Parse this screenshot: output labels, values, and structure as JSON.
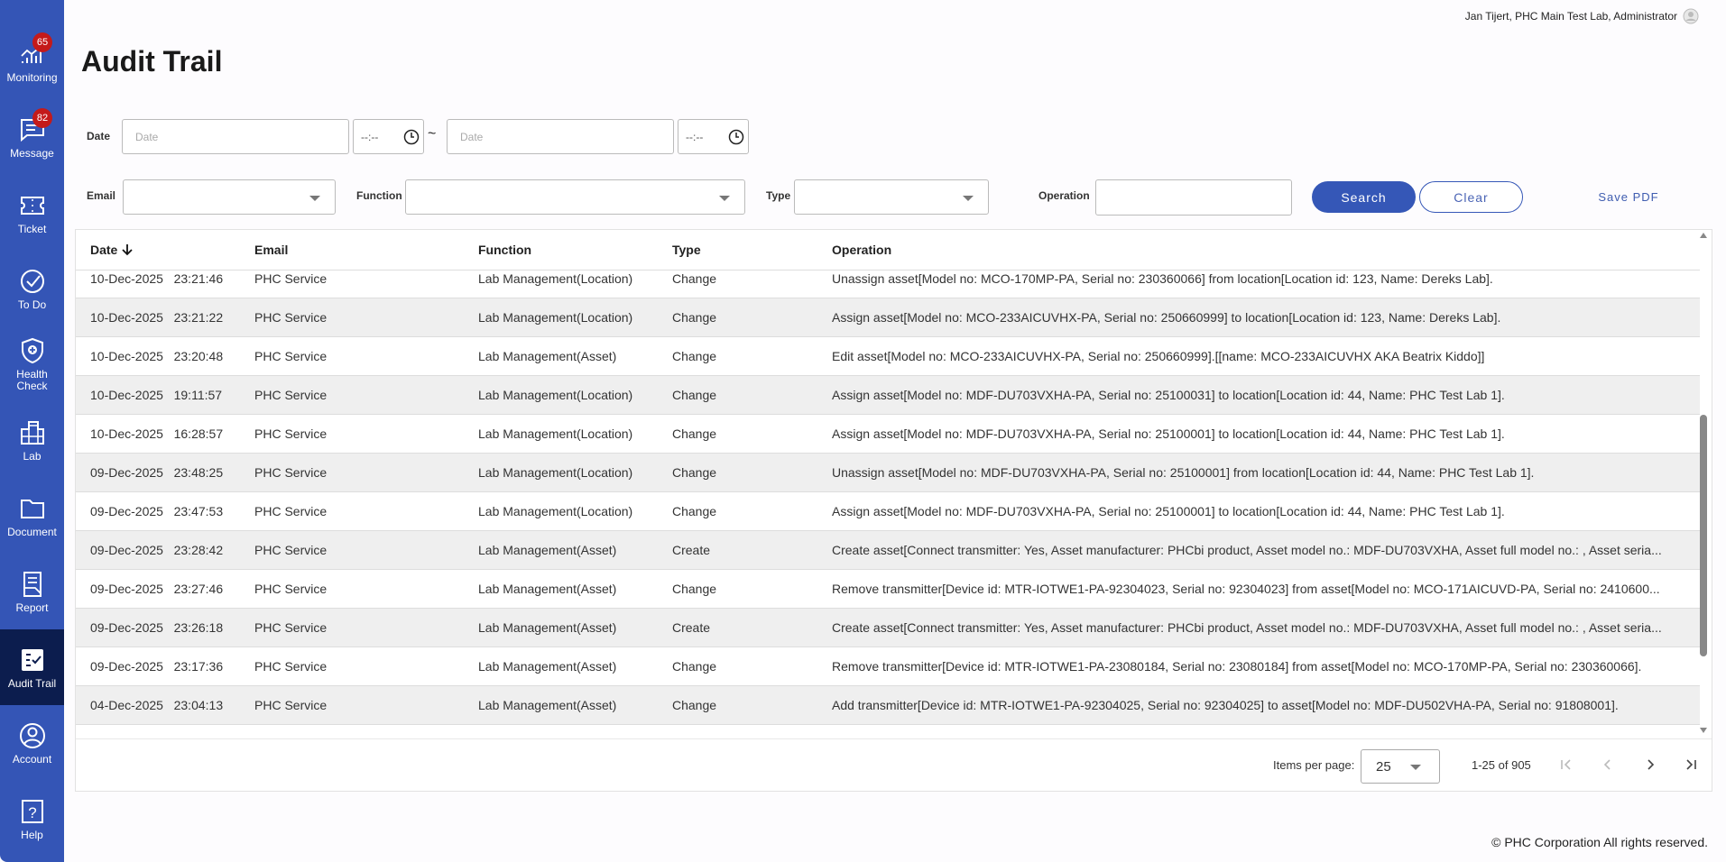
{
  "sidebar": {
    "items": [
      {
        "label": "Monitoring",
        "icon": "monitoring-chart-icon",
        "badge": "65"
      },
      {
        "label": "Message",
        "icon": "message-icon",
        "badge": "82"
      },
      {
        "label": "Ticket",
        "icon": "ticket-icon"
      },
      {
        "label": "To Do",
        "icon": "check-circle-icon"
      },
      {
        "label": "Health Check",
        "icon": "shield-plus-icon"
      },
      {
        "label": "Lab",
        "icon": "building-icon"
      },
      {
        "label": "Document",
        "icon": "folder-icon"
      },
      {
        "label": "Report",
        "icon": "report-icon"
      },
      {
        "label": "Audit Trail",
        "icon": "audit-list-icon",
        "active": true
      },
      {
        "label": "Account",
        "icon": "account-icon"
      },
      {
        "label": "Help",
        "icon": "help-icon"
      }
    ]
  },
  "user": {
    "label": "Jan Tijert, PHC Main Test Lab, Administrator"
  },
  "page": {
    "title": "Audit Trail"
  },
  "filters": {
    "date_label": "Date",
    "date_placeholder": "Date",
    "time_placeholder": "--:--",
    "range_sep": "~",
    "email_label": "Email",
    "function_label": "Function",
    "type_label": "Type",
    "operation_label": "Operation",
    "search": "Search",
    "clear": "Clear",
    "save_pdf": "Save PDF"
  },
  "colors": {
    "sidebar": "#3455b6",
    "active": "#0c1d4e",
    "accent": "#3557b7"
  },
  "table": {
    "columns": [
      "Date",
      "Email",
      "Function",
      "Type",
      "Operation"
    ],
    "sort": "Date descending",
    "rows": [
      [
        "10-Dec-2025   23:21:46",
        "PHC Service",
        "Lab Management(Location)",
        "Change",
        "Unassign asset[Model no: MCO-170MP-PA, Serial no: 230360066] from location[Location id: 123, Name: Dereks Lab]."
      ],
      [
        "10-Dec-2025   23:21:22",
        "PHC Service",
        "Lab Management(Location)",
        "Change",
        "Assign asset[Model no: MCO-233AICUVHX-PA, Serial no: 250660999] to location[Location id: 123, Name: Dereks Lab]."
      ],
      [
        "10-Dec-2025   23:20:48",
        "PHC Service",
        "Lab Management(Asset)",
        "Change",
        "Edit asset[Model no: MCO-233AICUVHX-PA, Serial no: 250660999].[[name: MCO-233AICUVHX AKA Beatrix Kiddo]]"
      ],
      [
        "10-Dec-2025   19:11:57",
        "PHC Service",
        "Lab Management(Location)",
        "Change",
        "Assign asset[Model no: MDF-DU703VXHA-PA, Serial no: 25100031] to location[Location id: 44, Name: PHC Test Lab 1]."
      ],
      [
        "10-Dec-2025   16:28:57",
        "PHC Service",
        "Lab Management(Location)",
        "Change",
        "Assign asset[Model no: MDF-DU703VXHA-PA, Serial no: 25100001] to location[Location id: 44, Name: PHC Test Lab 1]."
      ],
      [
        "09-Dec-2025   23:48:25",
        "PHC Service",
        "Lab Management(Location)",
        "Change",
        "Unassign asset[Model no: MDF-DU703VXHA-PA, Serial no: 25100001] from location[Location id: 44, Name: PHC Test Lab 1]."
      ],
      [
        "09-Dec-2025   23:47:53",
        "PHC Service",
        "Lab Management(Location)",
        "Change",
        "Assign asset[Model no: MDF-DU703VXHA-PA, Serial no: 25100001] to location[Location id: 44, Name: PHC Test Lab 1]."
      ],
      [
        "09-Dec-2025   23:28:42",
        "PHC Service",
        "Lab Management(Asset)",
        "Create",
        "Create asset[Connect transmitter: Yes, Asset manufacturer: PHCbi product, Asset model no.: MDF-DU703VXHA, Asset full model no.: , Asset seria..."
      ],
      [
        "09-Dec-2025   23:27:46",
        "PHC Service",
        "Lab Management(Asset)",
        "Change",
        "Remove transmitter[Device id: MTR-IOTWE1-PA-92304023, Serial no: 92304023] from asset[Model no: MCO-171AICUVD-PA, Serial no: 2410600..."
      ],
      [
        "09-Dec-2025   23:26:18",
        "PHC Service",
        "Lab Management(Asset)",
        "Create",
        "Create asset[Connect transmitter: Yes, Asset manufacturer: PHCbi product, Asset model no.: MDF-DU703VXHA, Asset full model no.: , Asset seria..."
      ],
      [
        "09-Dec-2025   23:17:36",
        "PHC Service",
        "Lab Management(Asset)",
        "Change",
        "Remove transmitter[Device id: MTR-IOTWE1-PA-23080184, Serial no: 23080184] from asset[Model no: MCO-170MP-PA, Serial no: 230360066]."
      ],
      [
        "04-Dec-2025   23:04:13",
        "PHC Service",
        "Lab Management(Asset)",
        "Change",
        "Add transmitter[Device id: MTR-IOTWE1-PA-92304025, Serial no: 92304025] to asset[Model no: MDF-DU502VHA-PA, Serial no: 91808001]."
      ]
    ]
  },
  "pagination": {
    "items_label": "Items per page:",
    "per_page": "25",
    "range": "1-25 of 905"
  },
  "footer": {
    "text": "© PHC Corporation All rights reserved."
  }
}
